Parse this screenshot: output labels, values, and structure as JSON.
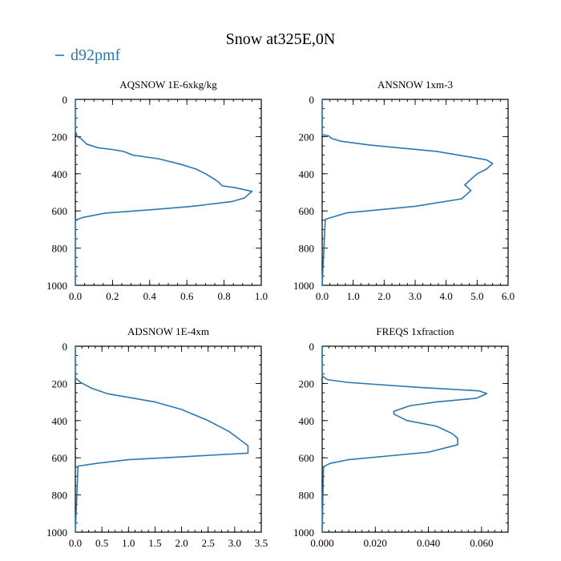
{
  "title": "Snow at325E,0N",
  "legend": {
    "label": "d92pmf",
    "color": "#2b77b0"
  },
  "series_color": "#2b77b0",
  "chart_data": [
    {
      "type": "line",
      "title": "AQSNOW  1E-6xkg/kg",
      "xlim": [
        0,
        1.0
      ],
      "ylim": [
        0,
        1000
      ],
      "y_inverted": true,
      "xticks": [
        0,
        0.2,
        0.4,
        0.6,
        0.8,
        1.0
      ],
      "xtick_labels": [
        "0.0",
        "0.2",
        "0.4",
        "0.6",
        "0.8",
        "1.0"
      ],
      "xminor": 0.05,
      "yticks": [
        0,
        200,
        400,
        600,
        800,
        1000
      ],
      "ytick_labels": [
        "0",
        "200",
        "400",
        "600",
        "800",
        "1000"
      ],
      "yminor": 50,
      "x": [
        0,
        0,
        0.01,
        0.03,
        0.06,
        0.12,
        0.2,
        0.26,
        0.31,
        0.45,
        0.57,
        0.65,
        0.7,
        0.75,
        0.77,
        0.79,
        0.86,
        0.95,
        0.91,
        0.84,
        0.63,
        0.43,
        0.16,
        0.04,
        0.0,
        0
      ],
      "y": [
        0,
        170,
        200,
        210,
        240,
        260,
        270,
        280,
        300,
        320,
        350,
        375,
        400,
        430,
        445,
        465,
        475,
        495,
        530,
        550,
        575,
        592,
        612,
        635,
        650,
        1000
      ]
    },
    {
      "type": "line",
      "title": "ANSNOW  1xm-3",
      "xlim": [
        0,
        6.0
      ],
      "ylim": [
        0,
        1000
      ],
      "y_inverted": true,
      "xticks": [
        0,
        1,
        2,
        3,
        4,
        5,
        6
      ],
      "xtick_labels": [
        "0.0",
        "1.0",
        "2.0",
        "3.0",
        "4.0",
        "5.0",
        "6.0"
      ],
      "xminor": 0.25,
      "yticks": [
        0,
        200,
        400,
        600,
        800,
        1000
      ],
      "ytick_labels": [
        "0",
        "200",
        "400",
        "600",
        "800",
        "1000"
      ],
      "yminor": 50,
      "x": [
        0,
        0,
        0.2,
        0.3,
        0.6,
        1.5,
        3.7,
        5.3,
        5.5,
        5.3,
        5.0,
        4.6,
        4.8,
        4.5,
        3.0,
        0.8,
        0.1,
        0
      ],
      "y": [
        0,
        190,
        195,
        210,
        225,
        245,
        280,
        325,
        345,
        375,
        400,
        460,
        490,
        535,
        575,
        610,
        645,
        1000
      ]
    },
    {
      "type": "line",
      "title": "ADSNOW  1E-4xm",
      "xlim": [
        0,
        3.5
      ],
      "ylim": [
        0,
        1000
      ],
      "y_inverted": true,
      "xticks": [
        0,
        0.5,
        1.0,
        1.5,
        2.0,
        2.5,
        3.0,
        3.5
      ],
      "xtick_labels": [
        "0.0",
        "0.5",
        "1.0",
        "1.5",
        "2.0",
        "2.5",
        "3.0",
        "3.5"
      ],
      "xminor": 0.125,
      "yticks": [
        0,
        200,
        400,
        600,
        800,
        1000
      ],
      "ytick_labels": [
        "0",
        "200",
        "400",
        "600",
        "800",
        "1000"
      ],
      "yminor": 50,
      "x": [
        0,
        0,
        0.1,
        0.3,
        0.6,
        1.0,
        1.5,
        2.0,
        2.5,
        2.9,
        3.25,
        3.25,
        2.0,
        1.0,
        0.4,
        0.05,
        0
      ],
      "y": [
        0,
        170,
        195,
        225,
        255,
        275,
        300,
        340,
        400,
        460,
        535,
        575,
        595,
        610,
        630,
        645,
        1000
      ]
    },
    {
      "type": "line",
      "title": "FREQS  1xfraction",
      "xlim": [
        0,
        0.07
      ],
      "ylim": [
        0,
        1000
      ],
      "y_inverted": true,
      "xticks": [
        0,
        0.02,
        0.04,
        0.06
      ],
      "xtick_labels": [
        "0.000",
        "0.020",
        "0.040",
        "0.060"
      ],
      "xminor": 0.0025,
      "yticks": [
        0,
        200,
        400,
        600,
        800,
        1000
      ],
      "ytick_labels": [
        "0",
        "200",
        "400",
        "600",
        "800",
        "1000"
      ],
      "yminor": 50,
      "x": [
        0,
        0,
        0.002,
        0.01,
        0.035,
        0.059,
        0.062,
        0.058,
        0.043,
        0.033,
        0.027,
        0.027,
        0.032,
        0.043,
        0.049,
        0.051,
        0.051,
        0.04,
        0.01,
        0.003,
        0.0005,
        0
      ],
      "y": [
        0,
        160,
        180,
        195,
        220,
        240,
        255,
        280,
        300,
        320,
        350,
        365,
        400,
        430,
        470,
        495,
        530,
        570,
        610,
        630,
        648,
        1000
      ]
    }
  ]
}
